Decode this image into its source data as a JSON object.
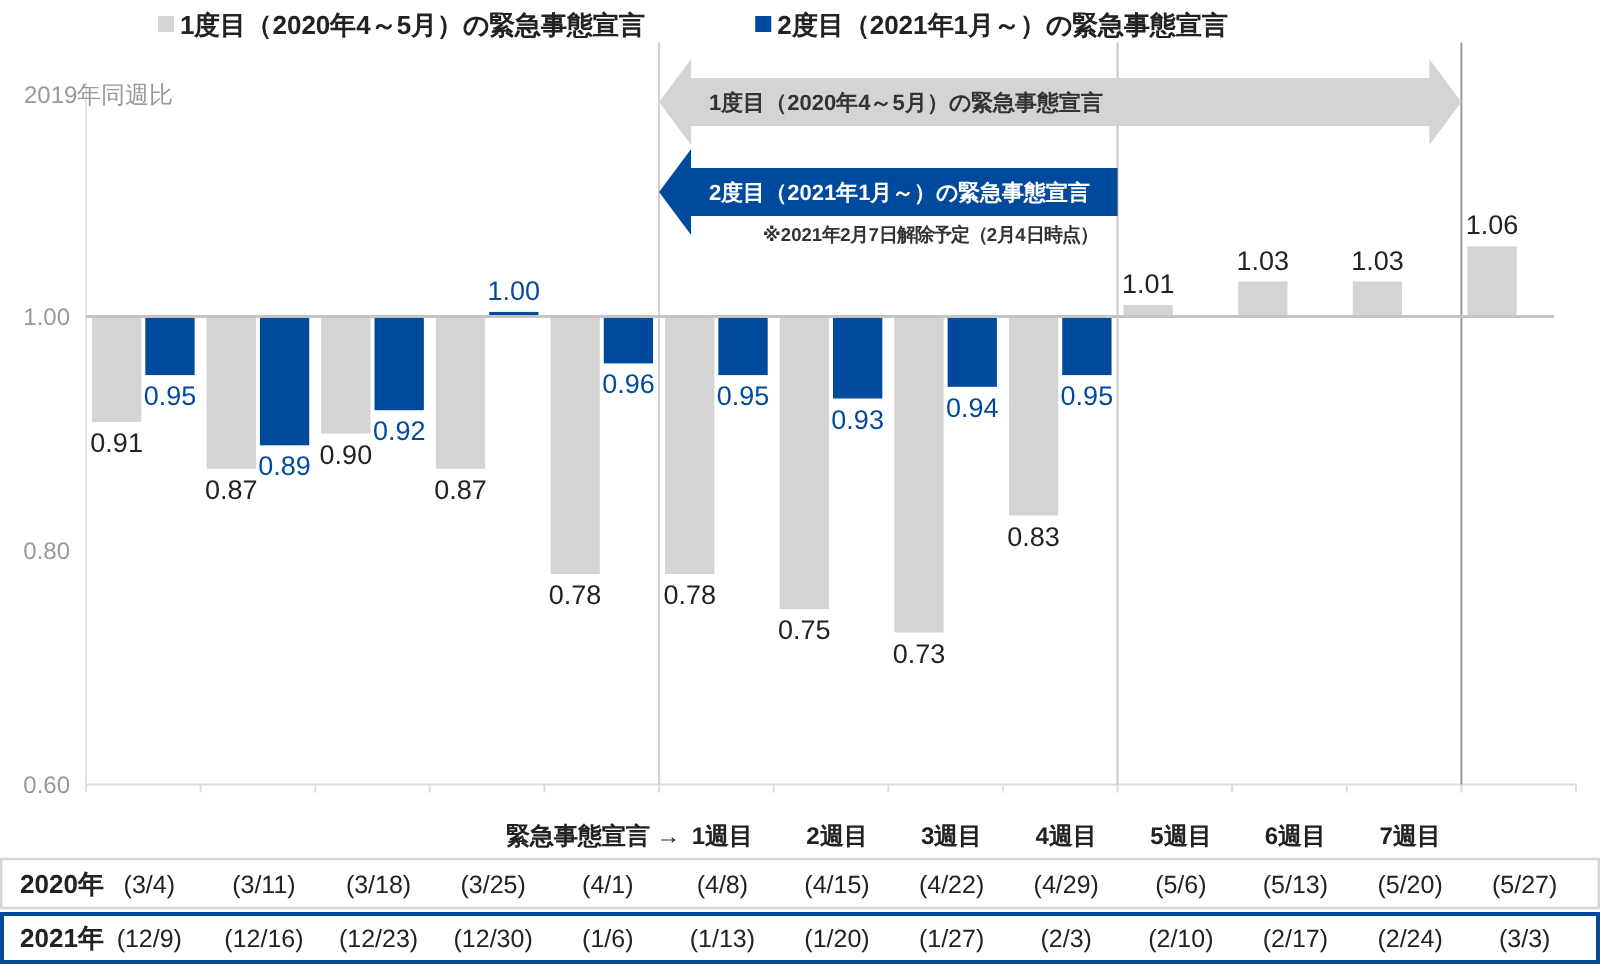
{
  "chart_data": {
    "type": "bar",
    "legend": "top",
    "x": [
      "2020-03-04",
      "2020-03-11",
      "2020-03-18",
      "2020-03-25",
      "2020-04-01",
      "2020-04-08",
      "2020-04-15",
      "2020-04-22",
      "2020-04-29",
      "2020-05-06",
      "2020-05-13",
      "2020-05-20",
      "2020-05-27"
    ],
    "xlim": [
      "2020-02-29T12:00",
      "2020-05-30T12:00"
    ],
    "xticks": [
      {
        "value": "2020-03-04",
        "label": "(3/4)"
      },
      {
        "value": "2020-03-11",
        "label": "(3/11)"
      },
      {
        "value": "2020-03-18",
        "label": "(3/18)"
      },
      {
        "value": "2020-03-25",
        "label": "(3/25)"
      },
      {
        "value": "2020-04-01",
        "label": "(4/1)"
      },
      {
        "value": "2020-04-08",
        "label": "(4/8)"
      },
      {
        "value": "2020-04-15",
        "label": "(4/15)"
      },
      {
        "value": "2020-04-22",
        "label": "(4/22)"
      },
      {
        "value": "2020-04-29",
        "label": "(4/29)"
      },
      {
        "value": "2020-05-06",
        "label": "(5/6)"
      },
      {
        "value": "2020-05-13",
        "label": "(5/13)"
      },
      {
        "value": "2020-05-20",
        "label": "(5/20)"
      },
      {
        "value": "2020-05-27",
        "label": "(5/27)"
      }
    ],
    "xlabel": "2020年",
    "x2lim": [
      "2020-12-05T12:00",
      "2021-03-06T12:00"
    ],
    "x2ticks": [
      {
        "value": "2020-12-09",
        "label": "(12/9)"
      },
      {
        "value": "2020-12-16",
        "label": "(12/16)"
      },
      {
        "value": "2020-12-23",
        "label": "(12/23)"
      },
      {
        "value": "2020-12-30",
        "label": "(12/30)"
      },
      {
        "value": "2021-01-06",
        "label": "(1/6)"
      },
      {
        "value": "2021-01-13",
        "label": "(1/13)"
      },
      {
        "value": "2021-01-20",
        "label": "(1/20)"
      },
      {
        "value": "2021-01-27",
        "label": "(1/27)"
      },
      {
        "value": "2021-02-03",
        "label": "(2/3)"
      },
      {
        "value": "2021-02-10",
        "label": "(2/10)"
      },
      {
        "value": "2021-02-17",
        "label": "(2/17)"
      },
      {
        "value": "2021-02-24",
        "label": "(2/24)"
      },
      {
        "value": "2021-03-03",
        "label": "(3/3)"
      }
    ],
    "x2label": "2021年",
    "ylabel": "2019年同週比",
    "ylim": [
      0.6,
      1.2
    ],
    "yticks": [
      {
        "value": 0.6,
        "label": "0.60"
      },
      {
        "value": 0.8,
        "label": "0.80"
      },
      {
        "value": 1,
        "label": "1.00"
      }
    ],
    "series": [
      {
        "name": "1度目（2020年4～5月）の緊急事態宣言",
        "color": "#d4d4d4",
        "base": [
          1,
          1,
          1,
          1,
          1,
          1,
          1,
          1,
          1,
          1,
          1,
          1,
          1
        ],
        "values": [
          -0.09,
          -0.13,
          -0.1,
          -0.13,
          -0.22,
          -0.22,
          -0.25,
          -0.27,
          -0.17,
          0.01,
          0.03,
          0.03,
          0.06
        ],
        "value_labels": [
          "0.91",
          "0.87",
          "0.90",
          "0.87",
          "0.78",
          "0.78",
          "0.75",
          "0.73",
          "0.83",
          "1.01",
          "1.03",
          "1.03",
          "1.06"
        ]
      },
      {
        "name": "2度目（2021年1月～）の緊急事態宣言",
        "color": "#004a9e",
        "base": [
          1,
          1,
          1,
          1,
          1,
          1,
          1,
          1,
          1,
          null,
          null,
          null,
          null
        ],
        "values": [
          -0.05,
          -0.11,
          -0.08,
          0.004,
          -0.04,
          -0.05,
          -0.07,
          -0.06,
          -0.05,
          null,
          null,
          null,
          null
        ],
        "value_labels": [
          "0.95",
          "0.89",
          "0.92",
          "1.00",
          "0.96",
          "0.95",
          "0.93",
          "0.94",
          "0.95",
          null,
          null,
          null,
          null
        ]
      }
    ],
    "ref_lines": [
      {
        "axis": "y",
        "value": 1,
        "color": "#c4c4c4"
      },
      {
        "axis": "x",
        "value": "2020-04-04T12:00",
        "color": "#d0d0d0"
      },
      {
        "axis": "x",
        "value": "2020-05-02T12:00",
        "color": "#c8c8c8"
      },
      {
        "axis": "x",
        "value": "2020-05-23T12:00",
        "color": "#999999"
      }
    ],
    "annotations": [
      "1度目（2020年4～5月）の緊急事態宣言",
      "2度目（2021年1月～）の緊急事態宣言",
      "※2021年2月7日解除予定（2月4日時点）",
      "緊急事態宣言 →",
      "1週目",
      "2週目",
      "3週目",
      "4週目",
      "5週目",
      "6週目",
      "7週目"
    ]
  }
}
